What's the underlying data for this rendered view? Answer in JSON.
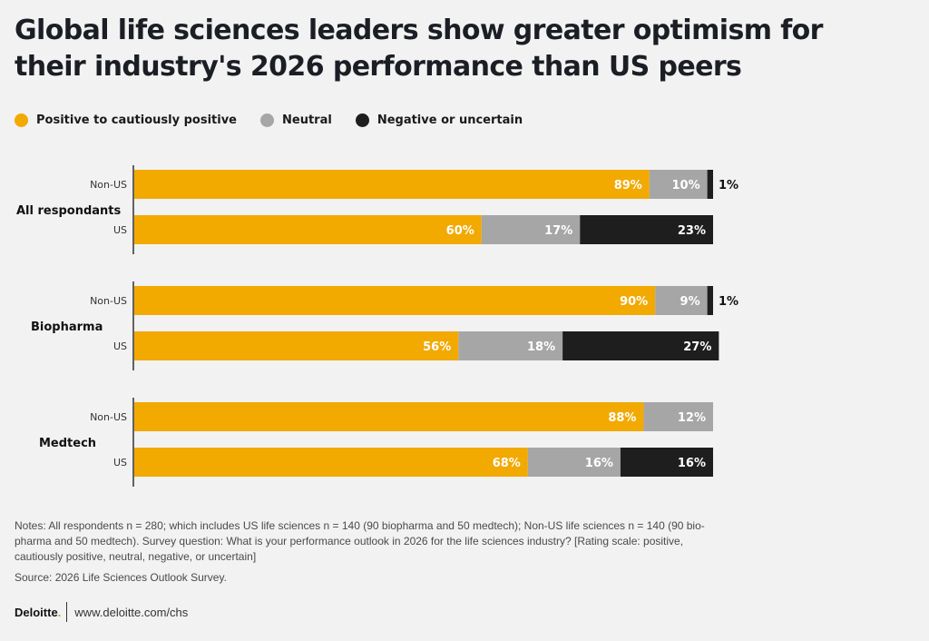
{
  "title": "Global life sciences leaders show greater optimism for their industry's 2026 performance than US peers",
  "legend": [
    {
      "label": "Positive to cautiously positive",
      "color": "#f2a900"
    },
    {
      "label": "Neutral",
      "color": "#a6a6a6"
    },
    {
      "label": "Negative or uncertain",
      "color": "#1e1e1e"
    }
  ],
  "chart_data": {
    "type": "bar",
    "orientation": "horizontal",
    "stacked": true,
    "title": "Global life sciences leaders show greater optimism for their industry's 2026 performance than US peers",
    "xlabel": "",
    "ylabel": "",
    "xlim": [
      0,
      100
    ],
    "grid": false,
    "legend_position": "top-left",
    "series_names": [
      "Positive to cautiously positive",
      "Neutral",
      "Negative or uncertain"
    ],
    "colors": [
      "#f2a900",
      "#a6a6a6",
      "#1e1e1e"
    ],
    "groups": [
      {
        "name": "All respondants",
        "rows": [
          {
            "label": "Non-US",
            "values": [
              89,
              10,
              1
            ]
          },
          {
            "label": "US",
            "values": [
              60,
              17,
              23
            ]
          }
        ]
      },
      {
        "name": "Biopharma",
        "rows": [
          {
            "label": "Non-US",
            "values": [
              90,
              9,
              1
            ]
          },
          {
            "label": "US",
            "values": [
              56,
              18,
              27
            ]
          }
        ]
      },
      {
        "name": "Medtech",
        "rows": [
          {
            "label": "Non-US",
            "values": [
              88,
              12,
              0
            ]
          },
          {
            "label": "US",
            "values": [
              68,
              16,
              16
            ]
          }
        ]
      }
    ],
    "value_suffix": "%"
  },
  "notes": "Notes: All respondents n = 280; which includes US life sciences n = 140 (90 biopharma and 50 medtech); Non-US life sciences n = 140 (90 bio-pharma and 50 medtech). Survey question: What is your performance outlook in 2026 for the life sciences industry? [Rating scale: positive, cautiously positive, neutral, negative, or uncertain]",
  "source": "Source: 2026 Life Sciences Outlook Survey.",
  "footer": {
    "brand": "Deloitte",
    "brand_dot": ".",
    "url": "www.deloitte.com/chs"
  }
}
